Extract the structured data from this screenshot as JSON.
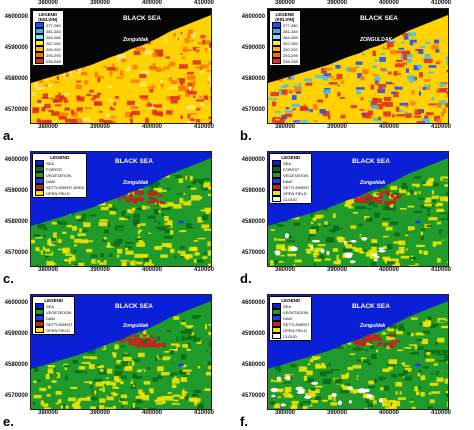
{
  "colors": {
    "sea_black": "#050505",
    "sea_blue": "#0b1fd6",
    "water_blue": "#1a3bff",
    "vegetation": "#1f9a2b",
    "vegetation_dark": "#0a6b14",
    "settlement": "#c0261f",
    "open_field": "#f2e600",
    "orange": "#ff7a00",
    "cloud": "#ffffff",
    "lst_yellow": "#ffd200",
    "lst_cyan": "#45c4e8",
    "lst_red": "#e0301e"
  },
  "x_ticks": [
    "380000",
    "390000",
    "400000",
    "410000"
  ],
  "y_ticks": [
    "4600000",
    "4590000",
    "4580000",
    "4570000"
  ],
  "panels": [
    {
      "id": "a",
      "label": "a.",
      "type": "lst",
      "sea_label": "BLACK SEA",
      "city_label": "Zonguldak",
      "legend_title": "LEGEND",
      "legend_subtitle": "(KELVIN)",
      "legend_entries": [
        {
          "label": "277-280",
          "color": "#1f4fff"
        },
        {
          "label": "281-283",
          "color": "#3ab0ff"
        },
        {
          "label": "284-286",
          "color": "#74e8ff"
        },
        {
          "label": "287-289",
          "color": "#fff200"
        },
        {
          "label": "290-292",
          "color": "#ffb400"
        },
        {
          "label": "293-295",
          "color": "#ff6a00"
        },
        {
          "label": "296-298",
          "color": "#e0301e"
        }
      ]
    },
    {
      "id": "b",
      "label": "b.",
      "type": "lst2",
      "sea_label": "BLACK SEA",
      "city_label": "ZONGULDAK",
      "legend_title": "LEGEND",
      "legend_subtitle": "(KELVIN)",
      "legend_entries": [
        {
          "label": "277-280",
          "color": "#1f4fff"
        },
        {
          "label": "281-283",
          "color": "#3ab0ff"
        },
        {
          "label": "284-286",
          "color": "#74e8ff"
        },
        {
          "label": "287-289",
          "color": "#fff200"
        },
        {
          "label": "290-292",
          "color": "#ffb400"
        },
        {
          "label": "293-295",
          "color": "#ff6a00"
        },
        {
          "label": "296-298",
          "color": "#e0301e"
        }
      ]
    },
    {
      "id": "c",
      "label": "c.",
      "type": "lc",
      "sea_label": "BLACK SEA",
      "city_label": "Zonguldak",
      "legend_title": "LEGEND",
      "legend_entries": [
        {
          "label": "SEA",
          "color": "#0b1fd6"
        },
        {
          "label": "FOREST",
          "color": "#0a6b14"
        },
        {
          "label": "VEGETATION",
          "color": "#1f9a2b"
        },
        {
          "label": "DAM",
          "color": "#1a3bff"
        },
        {
          "label": "SETTLEMENT AREA",
          "color": "#c0261f"
        },
        {
          "label": "OPEN FIELD",
          "color": "#f2e600"
        }
      ]
    },
    {
      "id": "d",
      "label": "d.",
      "type": "lc_cloud",
      "sea_label": "BLACK SEA",
      "city_label": "Zonguldak",
      "legend_title": "LEGEND",
      "legend_entries": [
        {
          "label": "SEA",
          "color": "#0b1fd6"
        },
        {
          "label": "FOREST",
          "color": "#0a6b14"
        },
        {
          "label": "VEGETATION",
          "color": "#1f9a2b"
        },
        {
          "label": "DAM",
          "color": "#1a3bff"
        },
        {
          "label": "SETTLEMENT",
          "color": "#c0261f"
        },
        {
          "label": "OPEN FIELD",
          "color": "#f2e600"
        },
        {
          "label": "CLOUD",
          "color": "#ffffff"
        }
      ]
    },
    {
      "id": "e",
      "label": "e.",
      "type": "lc",
      "sea_label": "BLACK SEA",
      "city_label": "Zonguldak",
      "legend_title": "LEGEND",
      "legend_entries": [
        {
          "label": "SEA",
          "color": "#0b1fd6"
        },
        {
          "label": "VEGETATION",
          "color": "#1f9a2b"
        },
        {
          "label": "DAM",
          "color": "#1a3bff"
        },
        {
          "label": "SETTLEMENT",
          "color": "#c0261f"
        },
        {
          "label": "OPEN FIELD",
          "color": "#f2e600"
        }
      ]
    },
    {
      "id": "f",
      "label": "f.",
      "type": "lc_cloud",
      "sea_label": "BLACK SEA",
      "city_label": "Zonguldak",
      "legend_title": "LEGEND",
      "legend_entries": [
        {
          "label": "SEA",
          "color": "#0b1fd6"
        },
        {
          "label": "VEGETATION",
          "color": "#1f9a2b"
        },
        {
          "label": "DAM",
          "color": "#1a3bff"
        },
        {
          "label": "SETTLEMENT",
          "color": "#c0261f"
        },
        {
          "label": "OPEN FIELD",
          "color": "#f2e600"
        },
        {
          "label": "CLOUD",
          "color": "#ffffff"
        }
      ]
    }
  ]
}
